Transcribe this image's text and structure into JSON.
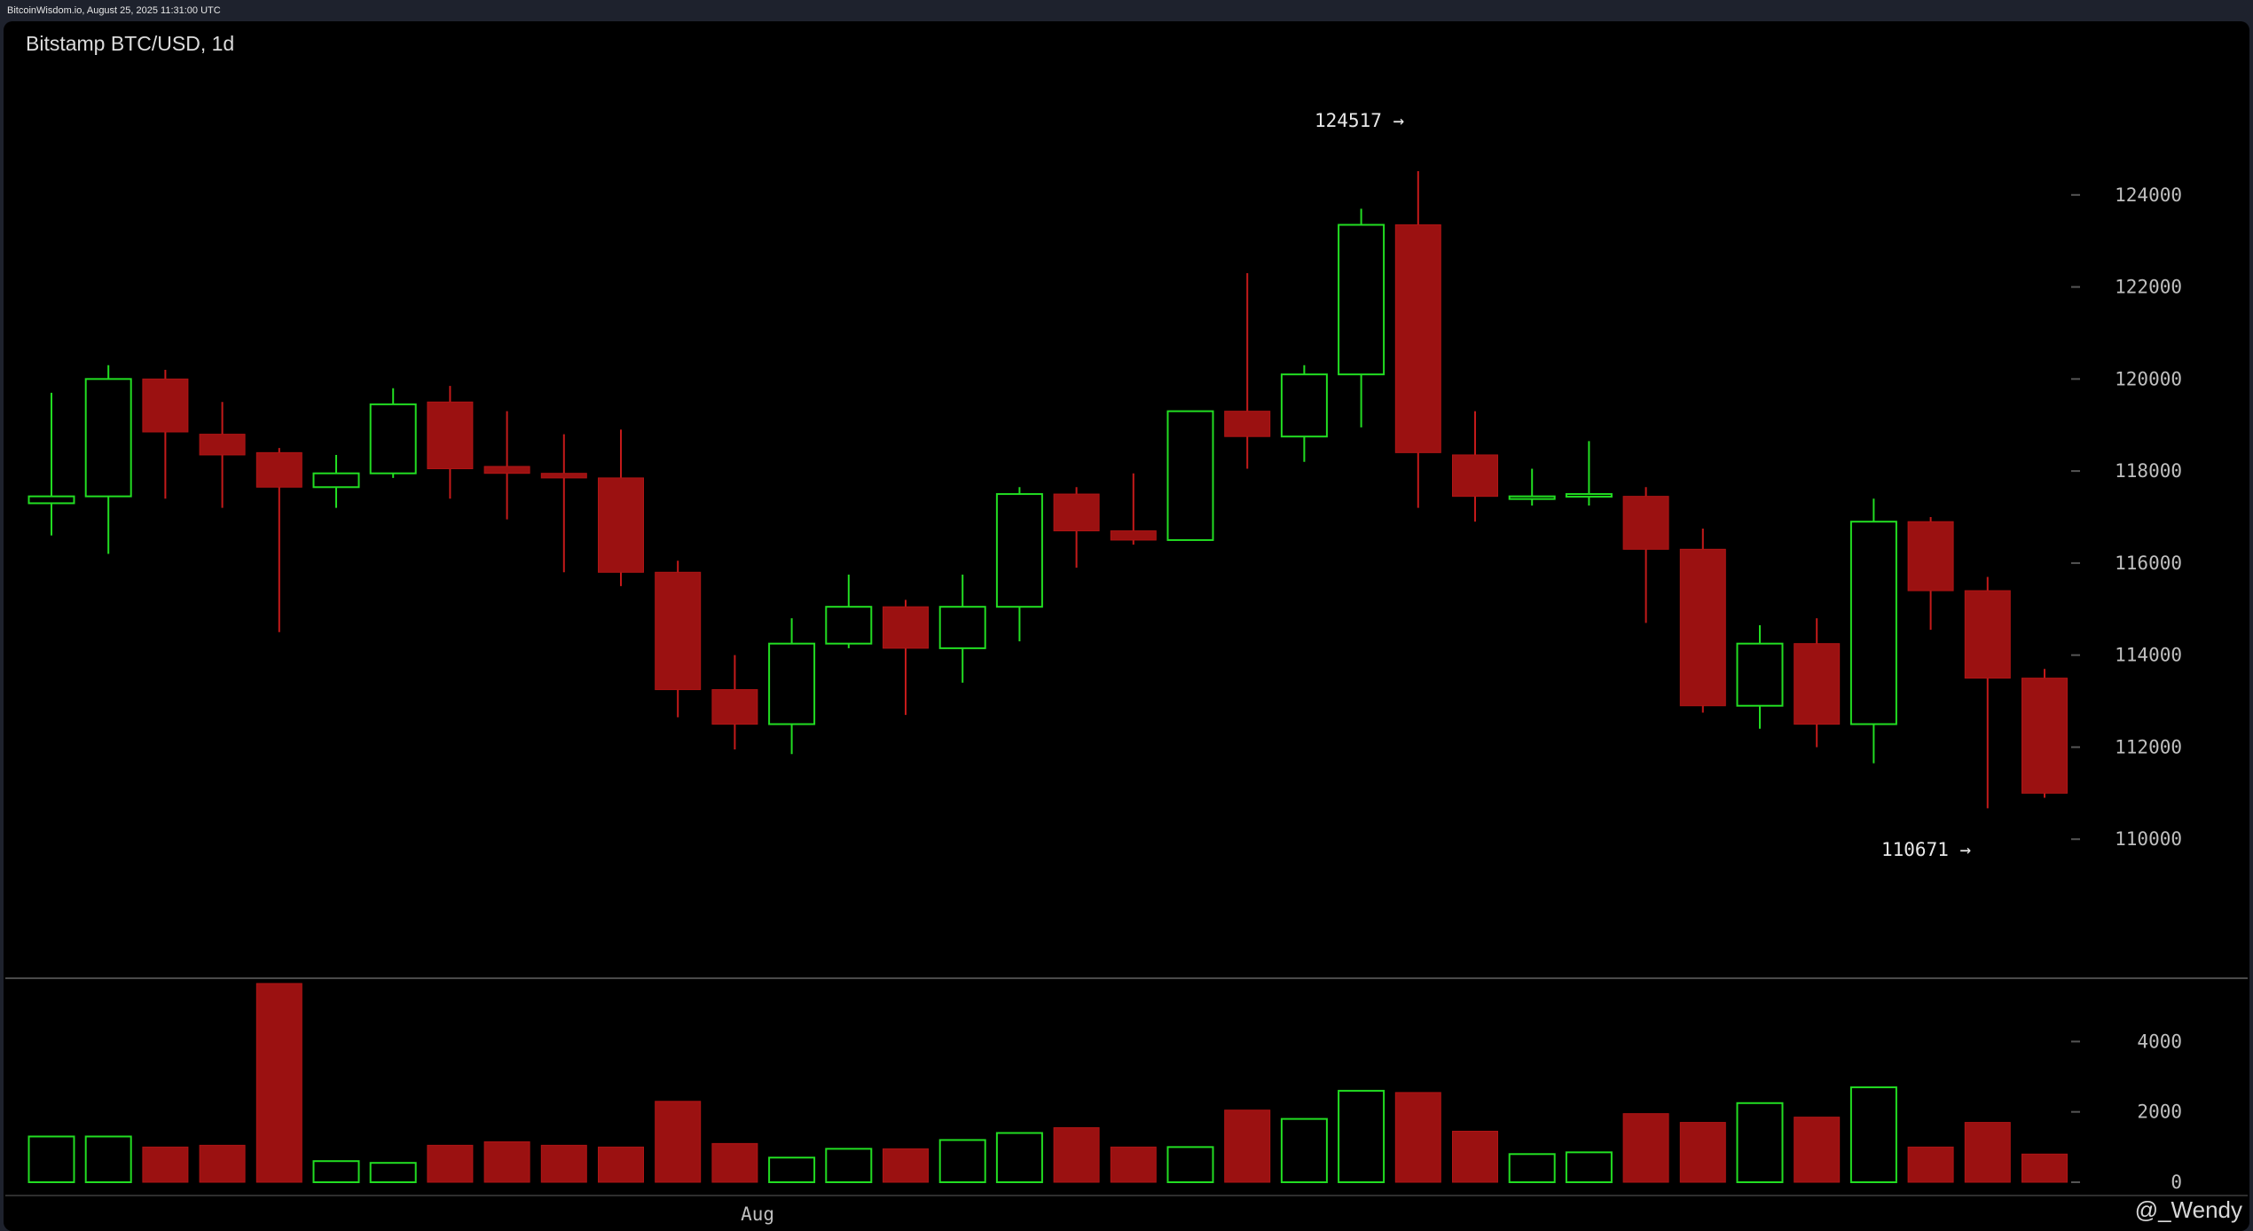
{
  "header": {
    "source_line": "BitcoinWisdom.io, August 25, 2025 11:31:00 UTC",
    "chart_title": "Bitstamp BTC/USD, 1d"
  },
  "watermark": "@_Wendy",
  "colors": {
    "background": "#000000",
    "frame": "#1e222d",
    "up": "#22dd22",
    "down": "#9b1111",
    "axis_text": "#bfbfbf"
  },
  "annotations": {
    "max_label": "124517 →",
    "min_label": "110671 →"
  },
  "chart_data": [
    {
      "type": "candlestick",
      "title": "Bitstamp BTC/USD, 1d",
      "ylim": [
        108000,
        126000
      ],
      "yticks": [
        110000,
        112000,
        114000,
        116000,
        118000,
        120000,
        122000,
        124000
      ],
      "xtick_labels": [
        {
          "label": "Aug",
          "index": 12.4
        }
      ],
      "candles": [
        {
          "o": 117300,
          "h": 119700,
          "l": 116600,
          "c": 117450
        },
        {
          "o": 117450,
          "h": 120300,
          "l": 116200,
          "c": 120000
        },
        {
          "o": 120000,
          "h": 120200,
          "l": 117400,
          "c": 118850
        },
        {
          "o": 118800,
          "h": 119500,
          "l": 117200,
          "c": 118350
        },
        {
          "o": 118400,
          "h": 118500,
          "l": 114500,
          "c": 117650
        },
        {
          "o": 117650,
          "h": 118350,
          "l": 117200,
          "c": 117950
        },
        {
          "o": 117950,
          "h": 119800,
          "l": 117850,
          "c": 119450
        },
        {
          "o": 119500,
          "h": 119850,
          "l": 117400,
          "c": 118050
        },
        {
          "o": 118100,
          "h": 119300,
          "l": 116950,
          "c": 117950
        },
        {
          "o": 117950,
          "h": 118800,
          "l": 115800,
          "c": 117850
        },
        {
          "o": 117850,
          "h": 118900,
          "l": 115500,
          "c": 115800
        },
        {
          "o": 115800,
          "h": 116050,
          "l": 112650,
          "c": 113250
        },
        {
          "o": 113250,
          "h": 114000,
          "l": 111950,
          "c": 112500
        },
        {
          "o": 112500,
          "h": 114800,
          "l": 111850,
          "c": 114250
        },
        {
          "o": 114250,
          "h": 115750,
          "l": 114150,
          "c": 115050
        },
        {
          "o": 115050,
          "h": 115200,
          "l": 112700,
          "c": 114150
        },
        {
          "o": 114150,
          "h": 115750,
          "l": 113400,
          "c": 115050
        },
        {
          "o": 115050,
          "h": 117650,
          "l": 114300,
          "c": 117500
        },
        {
          "o": 117500,
          "h": 117650,
          "l": 115900,
          "c": 116700
        },
        {
          "o": 116700,
          "h": 117950,
          "l": 116400,
          "c": 116500
        },
        {
          "o": 116500,
          "h": 119300,
          "l": 116500,
          "c": 119300
        },
        {
          "o": 119300,
          "h": 122300,
          "l": 118050,
          "c": 118750
        },
        {
          "o": 118750,
          "h": 120300,
          "l": 118200,
          "c": 120100
        },
        {
          "o": 120100,
          "h": 123700,
          "l": 118950,
          "c": 123350
        },
        {
          "o": 123350,
          "h": 124517,
          "l": 117200,
          "c": 118400
        },
        {
          "o": 118350,
          "h": 119300,
          "l": 116900,
          "c": 117450
        },
        {
          "o": 117450,
          "h": 118050,
          "l": 117250,
          "c": 117450
        },
        {
          "o": 117450,
          "h": 118650,
          "l": 117250,
          "c": 117500
        },
        {
          "o": 117450,
          "h": 117650,
          "l": 114700,
          "c": 116300
        },
        {
          "o": 116300,
          "h": 116750,
          "l": 112750,
          "c": 112900
        },
        {
          "o": 112900,
          "h": 114650,
          "l": 112400,
          "c": 114250
        },
        {
          "o": 114250,
          "h": 114800,
          "l": 112000,
          "c": 112500
        },
        {
          "o": 112500,
          "h": 117400,
          "l": 111650,
          "c": 116900
        },
        {
          "o": 116900,
          "h": 117000,
          "l": 114550,
          "c": 115400
        },
        {
          "o": 115400,
          "h": 115700,
          "l": 110671,
          "c": 113500
        },
        {
          "o": 113500,
          "h": 113700,
          "l": 110900,
          "c": 111000
        }
      ]
    },
    {
      "type": "bar",
      "title": "",
      "ylim": [
        0,
        5800
      ],
      "yticks": [
        0,
        2000,
        4000
      ],
      "values": [
        1300,
        1300,
        1000,
        1050,
        5650,
        600,
        550,
        1050,
        1150,
        1050,
        1000,
        2300,
        1100,
        700,
        950,
        950,
        1200,
        1400,
        1550,
        1000,
        1000,
        2050,
        1800,
        2600,
        2550,
        1450,
        800,
        850,
        1950,
        1700,
        2250,
        1850,
        2700,
        1000,
        1700,
        800
      ]
    }
  ]
}
